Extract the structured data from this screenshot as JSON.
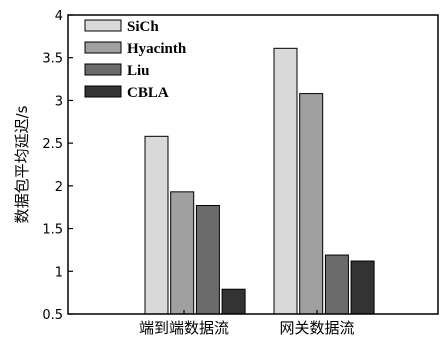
{
  "chart_data": {
    "type": "bar",
    "title": "",
    "xlabel": "",
    "ylabel": "数据包平均延迟/s",
    "categories": [
      "端到端数据流",
      "网关数据流"
    ],
    "series": [
      {
        "name": "SiCh",
        "color": "#d9d9d9",
        "values": [
          2.58,
          3.61
        ]
      },
      {
        "name": "Hyacinth",
        "color": "#a0a0a0",
        "values": [
          1.93,
          3.08
        ]
      },
      {
        "name": "Liu",
        "color": "#6b6b6b",
        "values": [
          1.77,
          1.19
        ]
      },
      {
        "name": "CBLA",
        "color": "#333333",
        "values": [
          0.79,
          1.12
        ]
      }
    ],
    "ylim": [
      0.5,
      4
    ],
    "yticks": [
      "0.5",
      "1",
      "1.5",
      "2",
      "2.5",
      "3",
      "3.5",
      "4"
    ],
    "grid": false,
    "legend_position": "top-left"
  }
}
